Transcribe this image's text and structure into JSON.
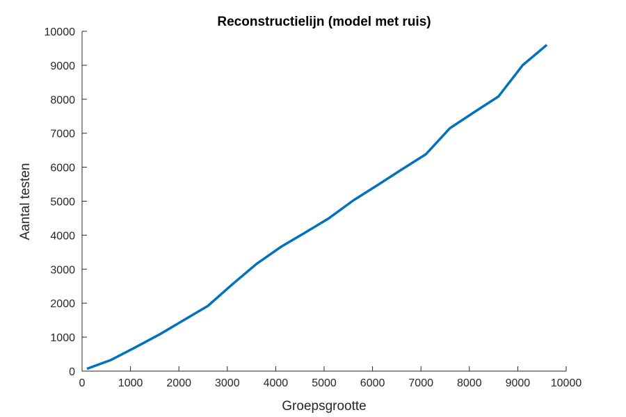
{
  "chart_data": {
    "type": "line",
    "title": "Reconstructielijn (model met ruis)",
    "xlabel": "Groepsgrootte",
    "ylabel": "Aantal testen",
    "xlim": [
      0,
      10000
    ],
    "ylim": [
      0,
      10000
    ],
    "xticks": [
      0,
      1000,
      2000,
      3000,
      4000,
      5000,
      6000,
      7000,
      8000,
      9000,
      10000
    ],
    "yticks": [
      0,
      1000,
      2000,
      3000,
      4000,
      5000,
      6000,
      7000,
      8000,
      9000,
      10000
    ],
    "grid": false,
    "series": [
      {
        "color": "#0072BD",
        "x": [
          100,
          600,
          1100,
          1600,
          2100,
          2600,
          3100,
          3600,
          4100,
          4600,
          5100,
          5600,
          6100,
          6600,
          7100,
          7600,
          8100,
          8600,
          9100,
          9600
        ],
        "y": [
          70,
          330,
          700,
          1080,
          1500,
          1920,
          2550,
          3150,
          3650,
          4070,
          4500,
          5020,
          5470,
          5930,
          6380,
          7150,
          7620,
          8080,
          9000,
          9600
        ]
      }
    ]
  }
}
